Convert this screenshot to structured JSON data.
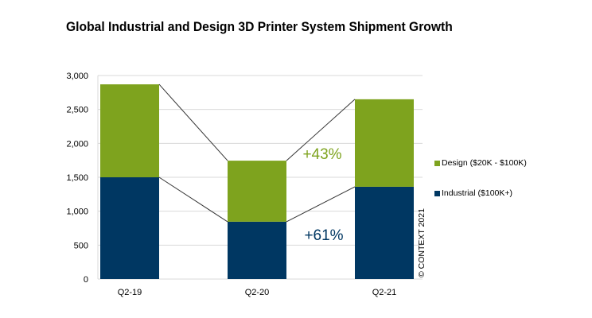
{
  "chart_data": {
    "type": "bar",
    "stacked": true,
    "title": "Global Industrial and Design 3D Printer System Shipment Growth",
    "xlabel": "",
    "ylabel": "",
    "categories": [
      "Q2-19",
      "Q2-20",
      "Q2-21"
    ],
    "series": [
      {
        "name": "Industrial ($100K+)",
        "values": [
          1500,
          845,
          1360
        ],
        "color": "#003762"
      },
      {
        "name": "Design ($20K - $100K)",
        "values": [
          1370,
          900,
          1290
        ],
        "color": "#7EA31E"
      }
    ],
    "ylim": [
      0,
      3000
    ],
    "yticks": [
      0,
      500,
      1000,
      1500,
      2000,
      2500,
      3000
    ],
    "ytick_labels": [
      "0",
      "500",
      "1,000",
      "1,500",
      "2,000",
      "2,500",
      "3,000"
    ],
    "grid": true,
    "legend_placement": "right",
    "annotations": [
      {
        "text": "+43%",
        "color": "#7EA31E"
      },
      {
        "text": "+61%",
        "color": "#003762"
      }
    ],
    "series_lines": true,
    "copyright": "© CONTEXT 2021"
  }
}
